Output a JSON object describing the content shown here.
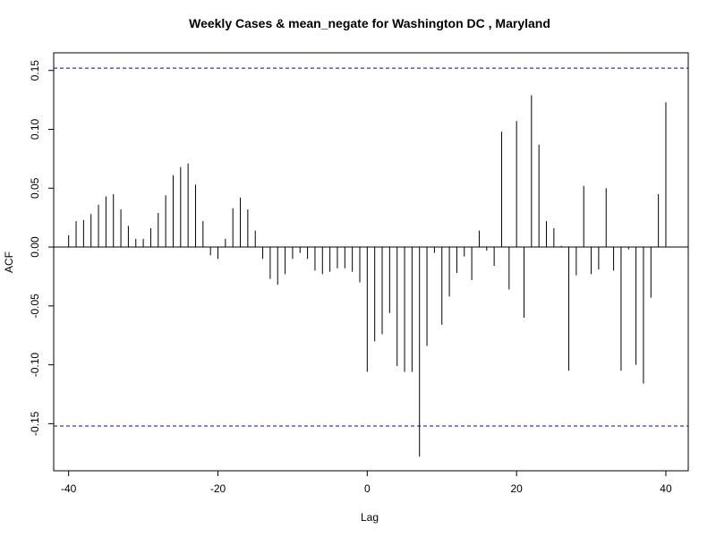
{
  "chart_data": {
    "type": "bar",
    "title": "Weekly Cases & mean_negate for Washington DC , Maryland",
    "xlabel": "Lag",
    "ylabel": "ACF",
    "xlim": [
      -42,
      43
    ],
    "ylim": [
      -0.19,
      0.165
    ],
    "x_ticks": [
      -40,
      -20,
      0,
      20,
      40
    ],
    "y_ticks": [
      -0.15,
      -0.1,
      -0.05,
      0.0,
      0.05,
      0.1,
      0.15
    ],
    "y_tick_labels": [
      "-0.15",
      "-0.10",
      "-0.05",
      "0.00",
      "0.05",
      "0.10",
      "0.15"
    ],
    "confidence_bound": 0.152,
    "colors": {
      "bars": "#000000",
      "bounds": "#0000cc",
      "zero_line": "#000000"
    },
    "lags": [
      -40,
      -39,
      -38,
      -37,
      -36,
      -35,
      -34,
      -33,
      -32,
      -31,
      -30,
      -29,
      -28,
      -27,
      -26,
      -25,
      -24,
      -23,
      -22,
      -21,
      -20,
      -19,
      -18,
      -17,
      -16,
      -15,
      -14,
      -13,
      -12,
      -11,
      -10,
      -9,
      -8,
      -7,
      -6,
      -5,
      -4,
      -3,
      -2,
      -1,
      0,
      1,
      2,
      3,
      4,
      5,
      6,
      7,
      8,
      9,
      10,
      11,
      12,
      13,
      14,
      15,
      16,
      17,
      18,
      19,
      20,
      21,
      22,
      23,
      24,
      25,
      26,
      27,
      28,
      29,
      30,
      31,
      32,
      33,
      34,
      35,
      36,
      37,
      38,
      39,
      40
    ],
    "values": [
      0.01,
      0.022,
      0.023,
      0.028,
      0.036,
      0.043,
      0.045,
      0.032,
      0.018,
      0.007,
      0.007,
      0.016,
      0.029,
      0.044,
      0.061,
      0.068,
      0.071,
      0.053,
      0.022,
      -0.007,
      -0.01,
      0.007,
      0.033,
      0.042,
      0.032,
      0.014,
      -0.01,
      -0.027,
      -0.032,
      -0.023,
      -0.01,
      -0.005,
      -0.01,
      -0.02,
      -0.023,
      -0.021,
      -0.018,
      -0.018,
      -0.021,
      -0.03,
      -0.106,
      -0.08,
      -0.074,
      -0.056,
      -0.101,
      -0.106,
      -0.106,
      -0.178,
      -0.084,
      -0.005,
      -0.066,
      -0.042,
      -0.022,
      -0.008,
      -0.028,
      0.014,
      -0.003,
      -0.016,
      0.098,
      -0.036,
      0.107,
      -0.06,
      0.129,
      0.087,
      0.022,
      0.016,
      0.001,
      -0.105,
      -0.024,
      0.052,
      -0.023,
      -0.019,
      0.05,
      -0.02,
      -0.105,
      -0.002,
      -0.1,
      -0.116,
      -0.043,
      0.045,
      0.123
    ]
  }
}
